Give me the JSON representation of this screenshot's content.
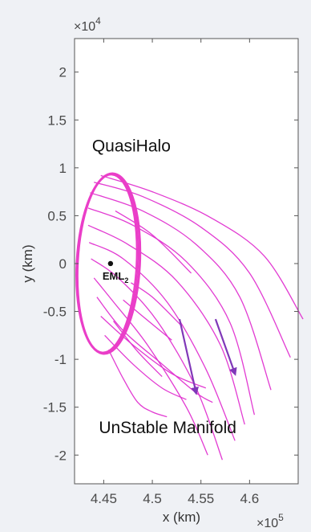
{
  "chart_data": {
    "type": "line",
    "xlabel": "x (km)",
    "ylabel": "y (km)",
    "x_multiplier": "×10^5",
    "y_multiplier": "×10^4",
    "xlim": [
      4.42,
      4.65
    ],
    "ylim": [
      -2.3,
      2.35
    ],
    "x_ticks": [
      4.45,
      4.5,
      4.55,
      4.6
    ],
    "x_tick_labels": [
      "4.45",
      "4.5",
      "4.55",
      "4.6"
    ],
    "y_ticks": [
      2,
      1.5,
      1,
      0.5,
      0,
      -0.5,
      -1,
      -1.5,
      -2
    ],
    "y_tick_labels": [
      "2",
      "1.5",
      "1",
      "0.5",
      "0",
      "-0.5",
      "-1",
      "-1.5",
      "-2"
    ],
    "grid": false,
    "orbit": {
      "center": [
        4.454,
        0.0
      ],
      "semi_axis_x": 0.031,
      "semi_axis_y": 0.935,
      "tilt_deg": 3
    },
    "point": {
      "label": "EML",
      "subscript": "2",
      "x": 4.457,
      "y": 0.0
    },
    "manifold_curves": [
      [
        [
          4.447,
          0.92
        ],
        [
          4.5,
          0.75
        ],
        [
          4.56,
          0.48
        ],
        [
          4.615,
          0.08
        ],
        [
          4.655,
          -0.58
        ]
      ],
      [
        [
          4.44,
          0.85
        ],
        [
          4.49,
          0.7
        ],
        [
          4.55,
          0.38
        ],
        [
          4.6,
          -0.1
        ],
        [
          4.642,
          -0.98
        ]
      ],
      [
        [
          4.436,
          0.74
        ],
        [
          4.49,
          0.55
        ],
        [
          4.545,
          0.2
        ],
        [
          4.59,
          -0.35
        ],
        [
          4.622,
          -1.32
        ]
      ],
      [
        [
          4.434,
          0.58
        ],
        [
          4.48,
          0.4
        ],
        [
          4.535,
          0.02
        ],
        [
          4.58,
          -0.62
        ],
        [
          4.605,
          -1.58
        ]
      ],
      [
        [
          4.434,
          0.4
        ],
        [
          4.475,
          0.2
        ],
        [
          4.525,
          -0.18
        ],
        [
          4.57,
          -0.85
        ],
        [
          4.595,
          -1.68
        ]
      ],
      [
        [
          4.435,
          0.22
        ],
        [
          4.47,
          0.05
        ],
        [
          4.515,
          -0.4
        ],
        [
          4.555,
          -1.1
        ],
        [
          4.585,
          -1.85
        ]
      ],
      [
        [
          4.437,
          0.05
        ],
        [
          4.465,
          -0.15
        ],
        [
          4.505,
          -0.6
        ],
        [
          4.545,
          -1.3
        ],
        [
          4.572,
          -2.05
        ]
      ],
      [
        [
          4.44,
          -0.15
        ],
        [
          4.46,
          -0.4
        ],
        [
          4.495,
          -0.85
        ],
        [
          4.535,
          -1.5
        ],
        [
          4.557,
          -2.0
        ]
      ],
      [
        [
          4.443,
          -0.35
        ],
        [
          4.47,
          -0.7
        ],
        [
          4.51,
          -1.05
        ],
        [
          4.545,
          -1.35
        ],
        [
          4.562,
          -1.45
        ]
      ],
      [
        [
          4.447,
          -0.55
        ],
        [
          4.48,
          -0.85
        ],
        [
          4.52,
          -1.15
        ],
        [
          4.555,
          -1.3
        ]
      ],
      [
        [
          4.451,
          -0.75
        ],
        [
          4.48,
          -1.05
        ],
        [
          4.51,
          -1.3
        ],
        [
          4.535,
          -1.42
        ]
      ],
      [
        [
          4.455,
          -0.9
        ],
        [
          4.47,
          -1.2
        ],
        [
          4.485,
          -1.45
        ],
        [
          4.5,
          -1.55
        ],
        [
          4.515,
          -1.6
        ]
      ],
      [
        [
          4.46,
          -0.6
        ],
        [
          4.485,
          -0.92
        ],
        [
          4.51,
          -1.18
        ]
      ],
      [
        [
          4.462,
          0.55
        ],
        [
          4.5,
          0.3
        ],
        [
          4.54,
          -0.1
        ]
      ],
      [
        [
          4.47,
          -0.38
        ],
        [
          4.49,
          -0.55
        ],
        [
          4.52,
          -0.8
        ]
      ],
      [
        [
          4.478,
          -0.2
        ],
        [
          4.5,
          -0.35
        ],
        [
          4.53,
          -0.65
        ]
      ]
    ],
    "arrows": [
      {
        "from": [
          4.528,
          -0.58
        ],
        "to": [
          4.545,
          -1.35
        ]
      },
      {
        "from": [
          4.565,
          -0.58
        ],
        "to": [
          4.585,
          -1.15
        ]
      }
    ],
    "annotations": [
      {
        "text": "QuasiHalo",
        "x": 4.438,
        "y": 1.17
      },
      {
        "text": "UnStable Manifold",
        "x": 4.445,
        "y": -1.77
      }
    ],
    "colors": {
      "orbit": "#ea3ec8",
      "manifold": "#e030d0",
      "arrow": "#8038b8",
      "plot_bg": "#ffffff",
      "page_bg": "#eff1f5",
      "axis": "#555555"
    }
  }
}
